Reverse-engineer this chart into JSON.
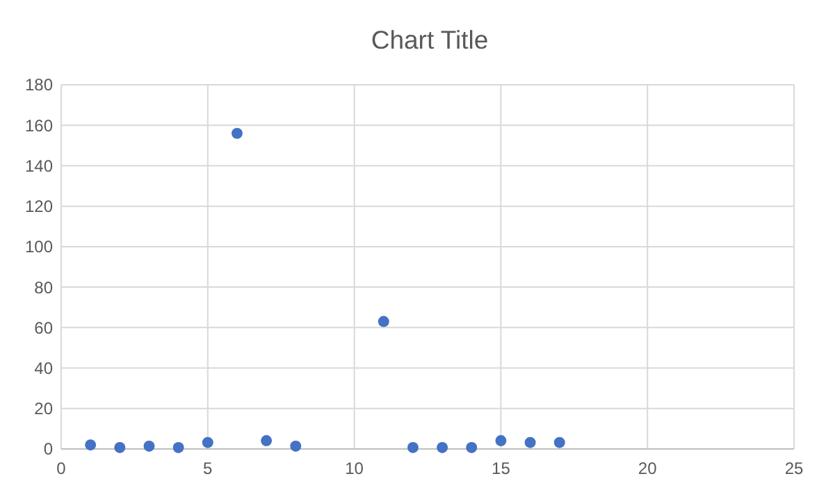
{
  "chart_data": {
    "type": "scatter",
    "title": "Chart Title",
    "x": [
      1,
      2,
      3,
      4,
      5,
      6,
      7,
      8,
      11,
      12,
      13,
      14,
      15,
      16,
      17
    ],
    "values": [
      2,
      0.7,
      1.4,
      0.7,
      3.2,
      156,
      4.1,
      1.4,
      63,
      0.7,
      0.7,
      0.7,
      4.1,
      3.2,
      3.2
    ],
    "color": "#4472c4",
    "marker": "circle",
    "xlim": [
      0,
      25
    ],
    "xticks": [
      0,
      5,
      10,
      15,
      20,
      25
    ],
    "ylim": [
      0,
      180
    ],
    "yticks": [
      0,
      20,
      40,
      60,
      80,
      100,
      120,
      140,
      160,
      180
    ],
    "grid": true
  }
}
